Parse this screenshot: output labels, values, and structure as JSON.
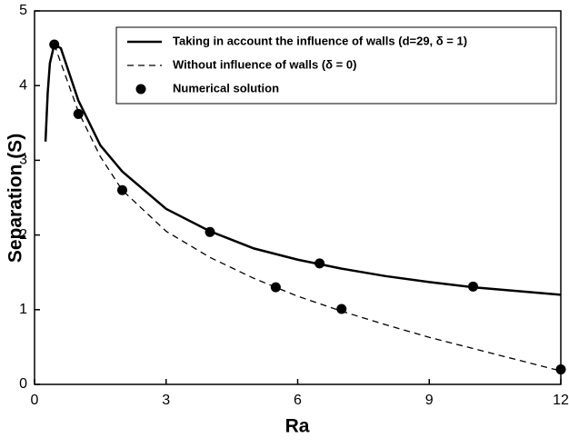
{
  "chart_data": {
    "type": "line",
    "xlabel": "Ra",
    "ylabel": "Separation (S)",
    "xlim": [
      0,
      12
    ],
    "xticks": [
      0,
      3,
      6,
      9,
      12
    ],
    "ylim": [
      0,
      5
    ],
    "yticks": [
      0,
      1,
      2,
      3,
      4,
      5
    ],
    "legend": "upper right",
    "series": [
      {
        "name": "Taking in account the influence of walls (d=29, δ = 1)",
        "color": "#000000",
        "style": "solid",
        "x": [
          0.25,
          0.3,
          0.35,
          0.45,
          0.6,
          1,
          1.5,
          2,
          3,
          4,
          5,
          6,
          7,
          8,
          9,
          10,
          11,
          12
        ],
        "values": [
          3.25,
          3.9,
          4.3,
          4.55,
          4.5,
          3.8,
          3.2,
          2.85,
          2.35,
          2.05,
          1.82,
          1.67,
          1.55,
          1.45,
          1.37,
          1.3,
          1.25,
          1.2
        ]
      },
      {
        "name": "Without influence of walls (δ = 0)",
        "color": "#000000",
        "style": "dashed",
        "x": [
          0.45,
          1,
          1.5,
          2,
          3,
          4,
          5,
          6,
          7,
          8,
          9,
          10,
          11,
          12
        ],
        "values": [
          4.55,
          3.65,
          3.05,
          2.6,
          2.05,
          1.7,
          1.42,
          1.18,
          0.98,
          0.8,
          0.63,
          0.48,
          0.33,
          0.18
        ]
      },
      {
        "name": "Numerical solution",
        "color": "#000000",
        "style": "markers",
        "x": [
          0.45,
          1,
          2,
          4,
          5.5,
          6.5,
          7,
          10,
          12
        ],
        "values": [
          4.55,
          3.62,
          2.6,
          2.04,
          1.3,
          1.62,
          1.01,
          1.31,
          0.2
        ]
      }
    ]
  }
}
